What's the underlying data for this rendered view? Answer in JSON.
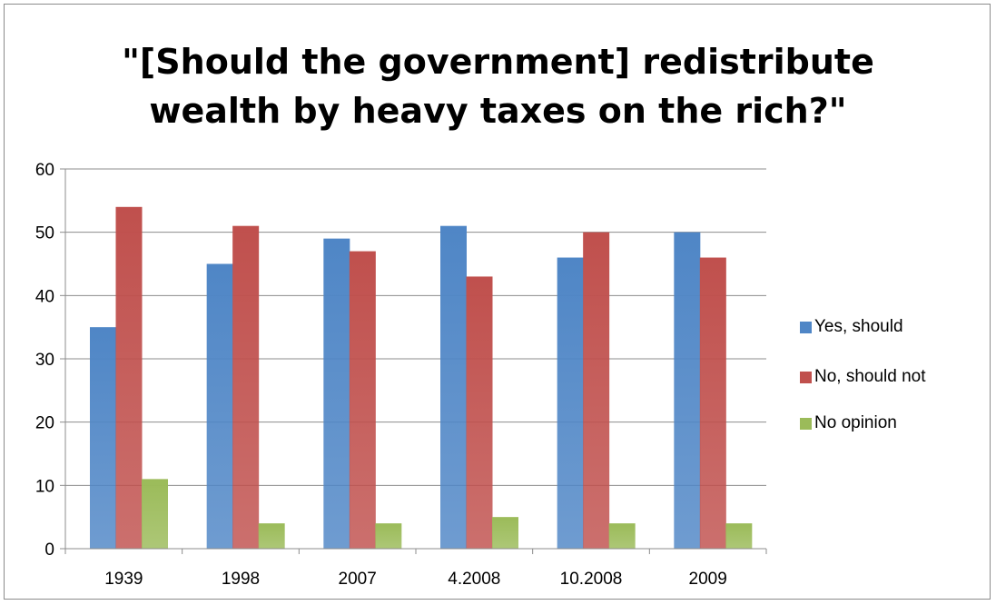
{
  "chart_data": {
    "type": "bar",
    "title": "\"[Should the government] redistribute\nwealth by heavy taxes on the rich?\"",
    "categories": [
      "1939",
      "1998",
      "2007",
      "4.2008",
      "10.2008",
      "2009"
    ],
    "series": [
      {
        "name": "Yes, should",
        "color": "#4f86c6",
        "values": [
          35,
          45,
          49,
          51,
          46,
          50
        ]
      },
      {
        "name": "No, should not",
        "color": "#c0504d",
        "values": [
          54,
          51,
          47,
          43,
          50,
          46
        ]
      },
      {
        "name": "No opinion",
        "color": "#9bbb59",
        "values": [
          11,
          4,
          4,
          5,
          4,
          4
        ]
      }
    ],
    "ylim": [
      0,
      60
    ],
    "yticks": [
      0,
      10,
      20,
      30,
      40,
      50,
      60
    ],
    "grid": true,
    "legend": "right"
  }
}
